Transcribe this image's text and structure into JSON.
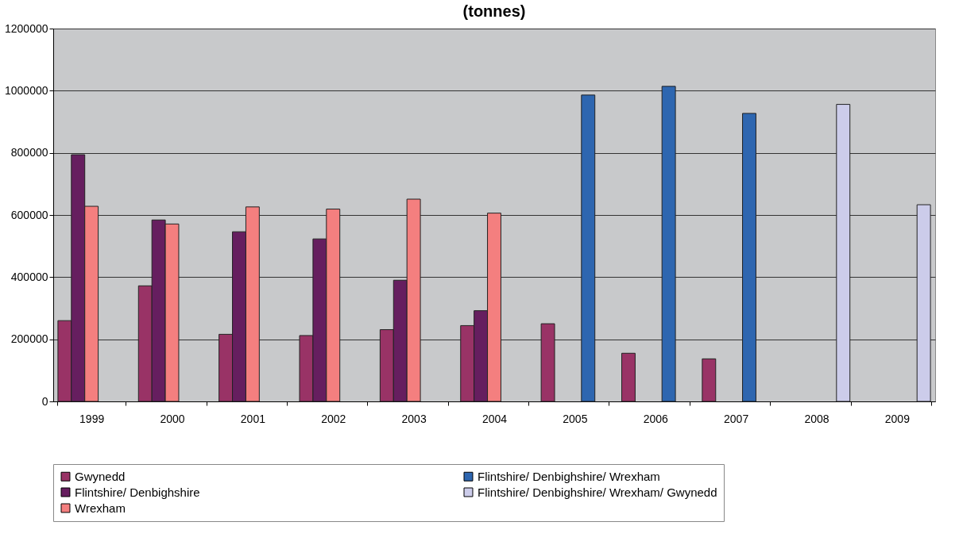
{
  "chart_data": {
    "type": "bar",
    "title": "(tonnes)",
    "categories": [
      "1999",
      "2000",
      "2001",
      "2002",
      "2003",
      "2004",
      "2005",
      "2006",
      "2007",
      "2008",
      "2009"
    ],
    "series": [
      {
        "name": "Gwynedd",
        "color": "#993366",
        "values": [
          260000,
          372000,
          216000,
          212000,
          231000,
          244000,
          250000,
          155000,
          137000,
          null,
          null
        ]
      },
      {
        "name": "Flintshire/ Denbighshire",
        "color": "#661e5f",
        "values": [
          794000,
          584000,
          546000,
          523000,
          390000,
          292000,
          null,
          null,
          null,
          null,
          null
        ]
      },
      {
        "name": "Wrexham",
        "color": "#f47f7f",
        "values": [
          628000,
          571000,
          626000,
          619000,
          651000,
          606000,
          null,
          null,
          null,
          null,
          null
        ]
      },
      {
        "name": "Flintshire/ Denbighshire/ Wrexham",
        "color": "#2e66b0",
        "values": [
          null,
          null,
          null,
          null,
          null,
          null,
          986000,
          1014000,
          927000,
          null,
          null
        ]
      },
      {
        "name": "Flintshire/ Denbighshire/ Wrexham/ Gwynedd",
        "color": "#ccccea",
        "values": [
          null,
          null,
          null,
          null,
          null,
          null,
          null,
          null,
          null,
          956000,
          633000
        ]
      }
    ],
    "ylim": [
      0,
      1200000
    ],
    "yticks": [
      0,
      200000,
      400000,
      600000,
      800000,
      1000000,
      1200000
    ],
    "grid": "y",
    "legend": "bottom"
  }
}
